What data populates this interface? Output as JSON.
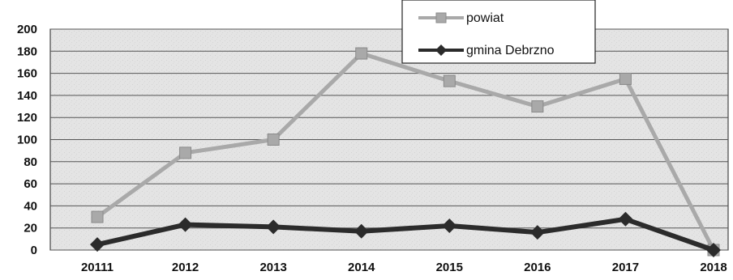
{
  "chart_data": {
    "type": "line",
    "title": "",
    "xlabel": "",
    "ylabel": "",
    "categories": [
      "20111",
      "2012",
      "2013",
      "2014",
      "2015",
      "2016",
      "2017",
      "2018"
    ],
    "ylim": [
      0,
      200
    ],
    "yticks": [
      "200",
      "180",
      "160",
      "140",
      "120",
      "100",
      "80",
      "60",
      "40",
      "20",
      "0"
    ],
    "grid": true,
    "legend_position": "top-center",
    "series": [
      {
        "name": "powiat",
        "values": [
          30,
          88,
          100,
          178,
          153,
          130,
          155,
          0
        ],
        "color": "#a9a9a9",
        "marker": "square"
      },
      {
        "name": "gmina Debrzno",
        "values": [
          5,
          23,
          21,
          17,
          22,
          16,
          28,
          0
        ],
        "color": "#2b2b2b",
        "marker": "diamond"
      }
    ]
  }
}
